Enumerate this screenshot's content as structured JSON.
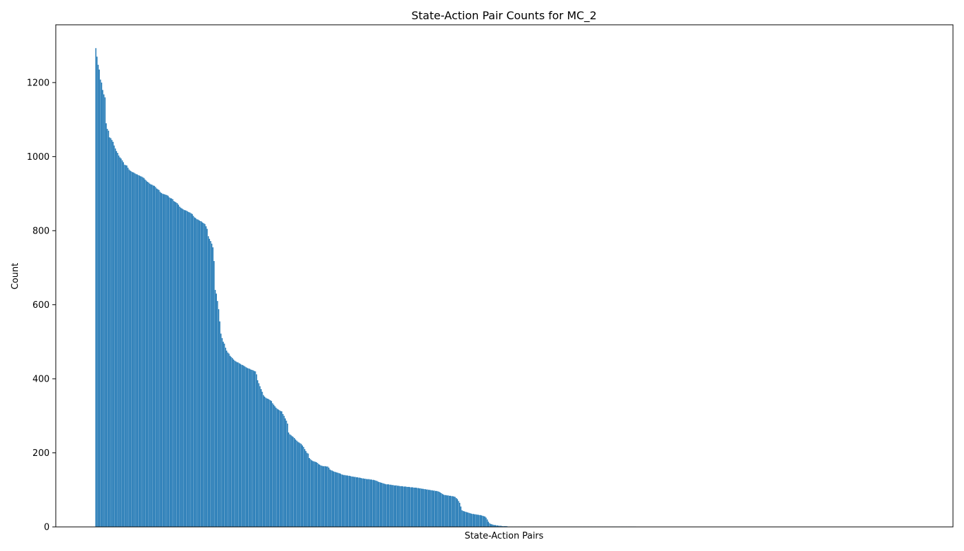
{
  "chart_data": {
    "type": "bar",
    "title": "State-Action Pair Counts for MC_2",
    "xlabel": "State-Action Pairs",
    "ylabel": "Count",
    "ylim": [
      0,
      1356
    ],
    "xticks": [],
    "yticks": [
      0,
      200,
      400,
      600,
      800,
      1000,
      1200
    ],
    "grid": false,
    "bar_color": "#1f77b4",
    "n_pairs": 470,
    "sorted": "descending",
    "values": [
      1293,
      1270,
      1248,
      1235,
      1208,
      1200,
      1180,
      1168,
      1160,
      1090,
      1075,
      1070,
      1052,
      1050,
      1045,
      1040,
      1030,
      1022,
      1015,
      1010,
      1003,
      998,
      995,
      990,
      985,
      978,
      977,
      976,
      970,
      965,
      962,
      960,
      958,
      957,
      955,
      953,
      952,
      950,
      949,
      947,
      946,
      944,
      942,
      938,
      935,
      932,
      930,
      927,
      925,
      924,
      922,
      921,
      918,
      914,
      912,
      910,
      905,
      902,
      900,
      899,
      898,
      897,
      896,
      894,
      890,
      888,
      887,
      885,
      880,
      878,
      876,
      874,
      870,
      865,
      862,
      860,
      858,
      856,
      855,
      854,
      852,
      850,
      849,
      847,
      845,
      840,
      836,
      834,
      831,
      830,
      828,
      826,
      825,
      822,
      820,
      818,
      812,
      805,
      785,
      778,
      772,
      765,
      755,
      718,
      640,
      630,
      610,
      588,
      555,
      522,
      510,
      500,
      495,
      484,
      476,
      471,
      468,
      462,
      459,
      456,
      452,
      449,
      447,
      445,
      444,
      442,
      440,
      438,
      437,
      435,
      433,
      431,
      429,
      428,
      427,
      425,
      424,
      423,
      421,
      420,
      412,
      396,
      388,
      380,
      372,
      365,
      356,
      352,
      349,
      347,
      346,
      344,
      342,
      340,
      334,
      330,
      326,
      322,
      319,
      317,
      315,
      313,
      312,
      305,
      300,
      293,
      287,
      279,
      255,
      250,
      248,
      245,
      243,
      240,
      236,
      233,
      230,
      228,
      226,
      224,
      220,
      216,
      210,
      205,
      200,
      198,
      186,
      183,
      180,
      178,
      177,
      176,
      175,
      173,
      170,
      168,
      166,
      165,
      164,
      164,
      164,
      163,
      163,
      160,
      155,
      153,
      152,
      150,
      149,
      148,
      147,
      146,
      145,
      144,
      142,
      141,
      140,
      140,
      139,
      139,
      138,
      138,
      137,
      136,
      136,
      135,
      135,
      134,
      134,
      133,
      133,
      132,
      131,
      131,
      130,
      130,
      129,
      129,
      129,
      128,
      128,
      127,
      127,
      126,
      125,
      124,
      122,
      121,
      120,
      119,
      118,
      117,
      116,
      115,
      115,
      115,
      114,
      114,
      113,
      113,
      112,
      112,
      112,
      111,
      111,
      110,
      110,
      110,
      109,
      109,
      109,
      108,
      108,
      108,
      107,
      107,
      107,
      106,
      106,
      106,
      105,
      105,
      104,
      104,
      103,
      103,
      102,
      102,
      101,
      101,
      100,
      100,
      99,
      99,
      98,
      98,
      97,
      97,
      96,
      95,
      93,
      91,
      89,
      87,
      86,
      86,
      85,
      85,
      84,
      84,
      83,
      83,
      82,
      81,
      78,
      75,
      70,
      65,
      55,
      45,
      43,
      42,
      41,
      40,
      39,
      38,
      37,
      36,
      35,
      35,
      34,
      34,
      33,
      33,
      32,
      32,
      31,
      30,
      29,
      28,
      25,
      20,
      14,
      10,
      8,
      7,
      6,
      5,
      5,
      4,
      4,
      3,
      3,
      3,
      2,
      2,
      2,
      2,
      2,
      1,
      1,
      1,
      1,
      1,
      1,
      1,
      1,
      1,
      1,
      1,
      1,
      1,
      1,
      1,
      1,
      1,
      1,
      1,
      1,
      1,
      1,
      1,
      1,
      1,
      1,
      1,
      1,
      1,
      1,
      1,
      1,
      1,
      1,
      1,
      1,
      1,
      1,
      1,
      1,
      1,
      1,
      1,
      1,
      1,
      1,
      1,
      1,
      1,
      1,
      1,
      1,
      1,
      1,
      1,
      1,
      1,
      1,
      1,
      1,
      1,
      1,
      1,
      1,
      1,
      1,
      1,
      1,
      1,
      1,
      1,
      1,
      1,
      1,
      1,
      1,
      1,
      1,
      1,
      1,
      1,
      1,
      1,
      1,
      1,
      1,
      1,
      1,
      1,
      1,
      1,
      1,
      1,
      1,
      1,
      1,
      1,
      1,
      1,
      1,
      1,
      1,
      1,
      1,
      1,
      1,
      1,
      1,
      1,
      1,
      1,
      1
    ]
  }
}
